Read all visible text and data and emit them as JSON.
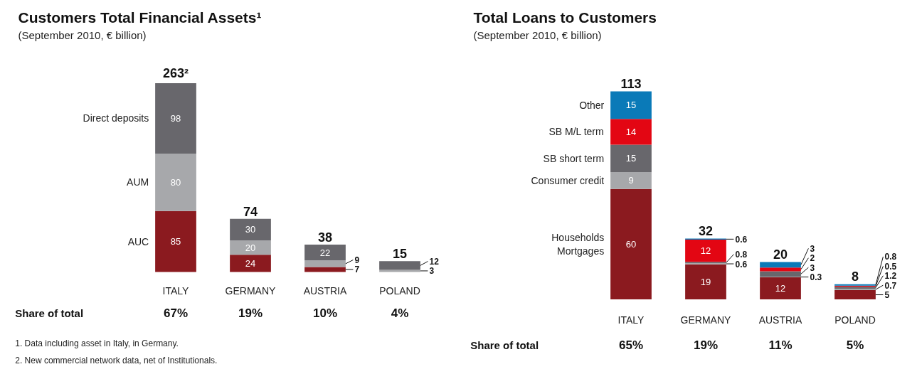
{
  "chart_data": [
    {
      "type": "bar",
      "stacked": true,
      "data_labels": true,
      "title": "Customers Total Financial Assets¹",
      "subtitle": "(September 2010, € billion)",
      "categories": [
        "ITALY",
        "GERMANY",
        "AUSTRIA",
        "POLAND"
      ],
      "series": [
        {
          "name": "AUC",
          "color": "#8b1a1f",
          "values": [
            85,
            24,
            7,
            null
          ]
        },
        {
          "name": "AUM",
          "color": "#a7a8ab",
          "values": [
            80,
            20,
            9,
            3
          ]
        },
        {
          "name": "Direct deposits",
          "color": "#68676c",
          "values": [
            98,
            30,
            22,
            12
          ]
        }
      ],
      "totals": [
        "263²",
        "74",
        "38",
        "15"
      ],
      "annotations": [
        "Share of total",
        "67%",
        "19%",
        "10%",
        "4%",
        "1. Data including asset in Italy, in Germany.",
        "2. New commercial network data, net of Institutionals."
      ]
    },
    {
      "type": "bar",
      "stacked": true,
      "data_labels": true,
      "title": "Total Loans to Customers",
      "subtitle": "(September 2010, € billion)",
      "categories": [
        "ITALY",
        "GERMANY",
        "AUSTRIA",
        "POLAND"
      ],
      "series": [
        {
          "name": "Households\nMortgages",
          "color": "#8b1a1f",
          "values": [
            60,
            19,
            12,
            5
          ]
        },
        {
          "name": "Consumer credit",
          "color": "#a7a8ab",
          "values": [
            9,
            0.6,
            0.3,
            0.7
          ]
        },
        {
          "name": "SB short term",
          "color": "#68676c",
          "values": [
            15,
            0.8,
            3,
            1.2
          ]
        },
        {
          "name": "SB M/L term",
          "color": "#e30613",
          "values": [
            14,
            12,
            2,
            0.5
          ]
        },
        {
          "name": "Other",
          "color": "#0a7ab8",
          "values": [
            15,
            0.6,
            3,
            0.8
          ]
        }
      ],
      "totals": [
        "113",
        "32",
        "20",
        "8"
      ],
      "annotations": [
        "Share of total",
        "65%",
        "19%",
        "11%",
        "5%"
      ]
    }
  ]
}
